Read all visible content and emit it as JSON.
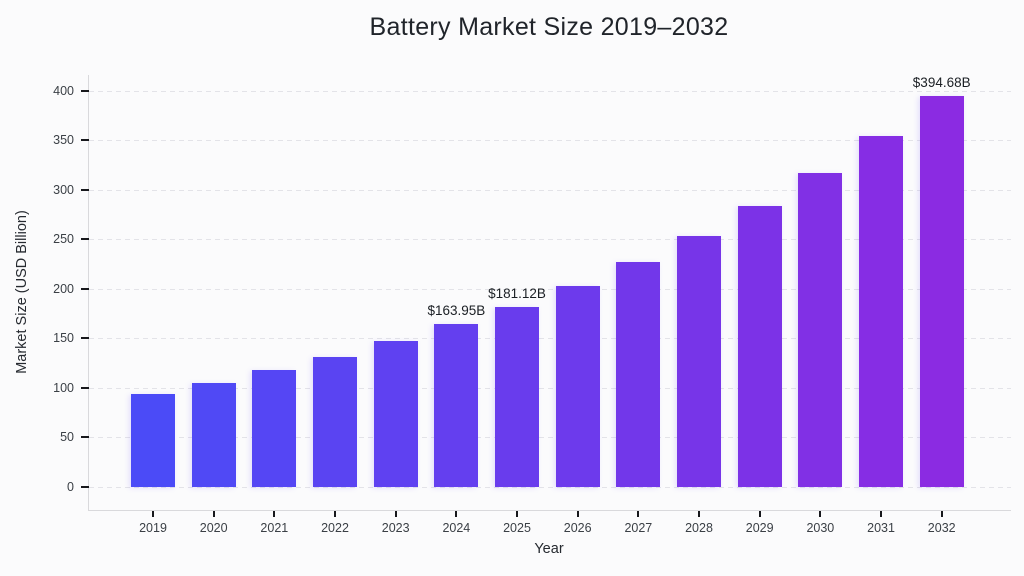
{
  "chart_data": {
    "type": "bar",
    "title": "Battery Market Size 2019–2032",
    "xlabel": "Year",
    "ylabel": "Market Size (USD Billion)",
    "categories": [
      "2019",
      "2020",
      "2021",
      "2022",
      "2023",
      "2024",
      "2025",
      "2026",
      "2027",
      "2028",
      "2029",
      "2030",
      "2031",
      "2032"
    ],
    "values": [
      93.86,
      104.94,
      117.32,
      131.17,
      146.65,
      163.95,
      181.12,
      202.49,
      226.39,
      253.1,
      282.97,
      316.36,
      353.69,
      394.68
    ],
    "point_labels": [
      "",
      "",
      "",
      "",
      "",
      "$163.95B",
      "$181.12B",
      "",
      "",
      "",
      "",
      "",
      "",
      "$394.68B"
    ],
    "yticks": [
      0,
      50,
      100,
      150,
      200,
      250,
      300,
      350,
      400
    ],
    "ylim": [
      0,
      400
    ],
    "grid": "horizontal-dashed",
    "legend": "none",
    "colors": {
      "bar_gradient_start": "#4b4bf7",
      "bar_gradient_end": "#8b2be2",
      "background": "#fbfbfc",
      "gridline": "#e3e3e8",
      "spine": "#d9d9dc",
      "tick_mark": "#17181c",
      "tick_text": "#3a3f45",
      "title_text": "#20242a"
    }
  }
}
